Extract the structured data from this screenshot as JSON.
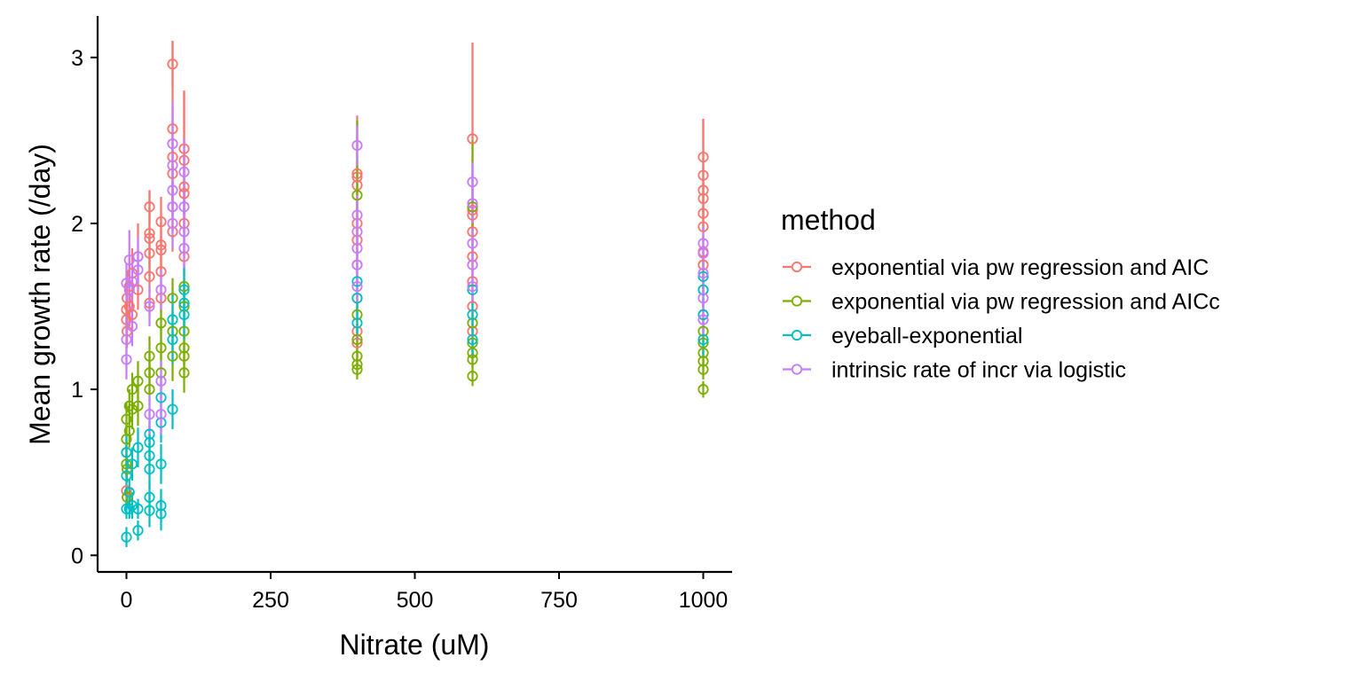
{
  "chart_data": {
    "type": "scatter",
    "title": "",
    "xlabel": "Nitrate (uM)",
    "ylabel": "Mean growth rate (/day)",
    "xlim": [
      -50,
      1050
    ],
    "ylim": [
      -0.1,
      3.25
    ],
    "x_ticks": [
      0,
      250,
      500,
      750,
      1000
    ],
    "x_tick_labels": [
      "0",
      "250",
      "500",
      "750",
      "1000"
    ],
    "y_ticks": [
      0,
      1,
      2,
      3
    ],
    "y_tick_labels": [
      "0",
      "1",
      "2",
      "3"
    ],
    "grid": false,
    "legend": {
      "title": "method",
      "position": "right"
    },
    "error_bars": true,
    "marker": "open-circle",
    "series": [
      {
        "name": "exponential via pw regression and AIC",
        "color": "#F8766D",
        "points": [
          {
            "x": 0,
            "y": 1.48,
            "err": 0.12
          },
          {
            "x": 0,
            "y": 1.42,
            "err": 0.1
          },
          {
            "x": 0,
            "y": 0.39,
            "err": 0.08
          },
          {
            "x": 1,
            "y": 1.55,
            "err": 0.15
          },
          {
            "x": 1,
            "y": 1.35,
            "err": 0.1
          },
          {
            "x": 5,
            "y": 1.62,
            "err": 0.18
          },
          {
            "x": 5,
            "y": 1.5,
            "err": 0.12
          },
          {
            "x": 10,
            "y": 1.7,
            "err": 0.15
          },
          {
            "x": 10,
            "y": 1.45,
            "err": 0.1
          },
          {
            "x": 20,
            "y": 1.8,
            "err": 0.2
          },
          {
            "x": 20,
            "y": 1.6,
            "err": 0.12
          },
          {
            "x": 40,
            "y": 2.1,
            "err": 0.1
          },
          {
            "x": 40,
            "y": 1.94,
            "err": 0.26
          },
          {
            "x": 40,
            "y": 1.91,
            "err": 0.15
          },
          {
            "x": 40,
            "y": 1.82,
            "err": 0.12
          },
          {
            "x": 40,
            "y": 1.68,
            "err": 0.1
          },
          {
            "x": 40,
            "y": 1.52,
            "err": 0.08
          },
          {
            "x": 60,
            "y": 2.01,
            "err": 0.15
          },
          {
            "x": 60,
            "y": 1.87,
            "err": 0.2
          },
          {
            "x": 60,
            "y": 1.84,
            "err": 0.12
          },
          {
            "x": 60,
            "y": 1.71,
            "err": 0.12
          },
          {
            "x": 60,
            "y": 1.55,
            "err": 0.1
          },
          {
            "x": 80,
            "y": 2.96,
            "err": 0.14
          },
          {
            "x": 80,
            "y": 2.57,
            "err": 0.53
          },
          {
            "x": 80,
            "y": 2.4,
            "err": 0.3
          },
          {
            "x": 80,
            "y": 2.3,
            "err": 0.2
          },
          {
            "x": 80,
            "y": 2.1,
            "err": 0.15
          },
          {
            "x": 80,
            "y": 1.95,
            "err": 0.12
          },
          {
            "x": 100,
            "y": 2.45,
            "err": 0.35
          },
          {
            "x": 100,
            "y": 2.38,
            "err": 0.42
          },
          {
            "x": 100,
            "y": 2.22,
            "err": 0.2
          },
          {
            "x": 100,
            "y": 2.18,
            "err": 0.15
          },
          {
            "x": 100,
            "y": 2.0,
            "err": 0.15
          },
          {
            "x": 100,
            "y": 1.8,
            "err": 0.12
          },
          {
            "x": 400,
            "y": 2.3,
            "err": 0.3
          },
          {
            "x": 400,
            "y": 2.28,
            "err": 0.37
          },
          {
            "x": 400,
            "y": 2.23,
            "err": 0.15
          },
          {
            "x": 400,
            "y": 2.0,
            "err": 0.12
          },
          {
            "x": 400,
            "y": 1.9,
            "err": 0.1
          },
          {
            "x": 400,
            "y": 1.75,
            "err": 0.1
          },
          {
            "x": 400,
            "y": 1.55,
            "err": 0.1
          },
          {
            "x": 400,
            "y": 1.35,
            "err": 0.1
          },
          {
            "x": 400,
            "y": 1.28,
            "err": 0.1
          },
          {
            "x": 600,
            "y": 2.51,
            "err": 0.58
          },
          {
            "x": 600,
            "y": 2.08,
            "err": 0.3
          },
          {
            "x": 600,
            "y": 2.05,
            "err": 0.15
          },
          {
            "x": 600,
            "y": 1.95,
            "err": 0.12
          },
          {
            "x": 600,
            "y": 1.8,
            "err": 0.1
          },
          {
            "x": 600,
            "y": 1.65,
            "err": 0.1
          },
          {
            "x": 600,
            "y": 1.5,
            "err": 0.1
          },
          {
            "x": 600,
            "y": 1.35,
            "err": 0.1
          },
          {
            "x": 1000,
            "y": 2.4,
            "err": 0.23
          },
          {
            "x": 1000,
            "y": 2.29,
            "err": 0.34
          },
          {
            "x": 1000,
            "y": 2.2,
            "err": 0.15
          },
          {
            "x": 1000,
            "y": 2.15,
            "err": 0.12
          },
          {
            "x": 1000,
            "y": 2.06,
            "err": 0.1
          },
          {
            "x": 1000,
            "y": 1.98,
            "err": 0.1
          },
          {
            "x": 1000,
            "y": 1.83,
            "err": 0.1
          },
          {
            "x": 1000,
            "y": 1.75,
            "err": 0.1
          },
          {
            "x": 1000,
            "y": 1.6,
            "err": 0.1
          },
          {
            "x": 1000,
            "y": 1.45,
            "err": 0.1
          }
        ]
      },
      {
        "name": "exponential via pw regression and AICc",
        "color": "#7CAE00",
        "points": [
          {
            "x": 0,
            "y": 0.55,
            "err": 0.08
          },
          {
            "x": 0,
            "y": 0.62,
            "err": 0.08
          },
          {
            "x": 0,
            "y": 0.7,
            "err": 0.1
          },
          {
            "x": 0,
            "y": 0.82,
            "err": 0.1
          },
          {
            "x": 1,
            "y": 0.35,
            "err": 0.06
          },
          {
            "x": 1,
            "y": 0.52,
            "err": 0.08
          },
          {
            "x": 5,
            "y": 0.75,
            "err": 0.1
          },
          {
            "x": 5,
            "y": 0.9,
            "err": 0.1
          },
          {
            "x": 10,
            "y": 0.88,
            "err": 0.12
          },
          {
            "x": 10,
            "y": 1.0,
            "err": 0.1
          },
          {
            "x": 20,
            "y": 0.9,
            "err": 0.12
          },
          {
            "x": 20,
            "y": 1.05,
            "err": 0.12
          },
          {
            "x": 40,
            "y": 1.0,
            "err": 0.15
          },
          {
            "x": 40,
            "y": 1.1,
            "err": 0.12
          },
          {
            "x": 40,
            "y": 1.2,
            "err": 0.12
          },
          {
            "x": 60,
            "y": 1.1,
            "err": 0.15
          },
          {
            "x": 60,
            "y": 1.25,
            "err": 0.12
          },
          {
            "x": 60,
            "y": 1.4,
            "err": 0.12
          },
          {
            "x": 80,
            "y": 1.2,
            "err": 0.15
          },
          {
            "x": 80,
            "y": 1.35,
            "err": 0.12
          },
          {
            "x": 80,
            "y": 1.55,
            "err": 0.12
          },
          {
            "x": 100,
            "y": 1.1,
            "err": 0.12
          },
          {
            "x": 100,
            "y": 1.2,
            "err": 0.1
          },
          {
            "x": 100,
            "y": 1.25,
            "err": 0.1
          },
          {
            "x": 100,
            "y": 1.35,
            "err": 0.12
          },
          {
            "x": 100,
            "y": 1.5,
            "err": 0.12
          },
          {
            "x": 100,
            "y": 1.62,
            "err": 0.12
          },
          {
            "x": 400,
            "y": 2.17,
            "err": 0.45
          },
          {
            "x": 400,
            "y": 1.12,
            "err": 0.06
          },
          {
            "x": 400,
            "y": 1.15,
            "err": 0.06
          },
          {
            "x": 400,
            "y": 1.2,
            "err": 0.08
          },
          {
            "x": 400,
            "y": 1.3,
            "err": 0.1
          },
          {
            "x": 400,
            "y": 1.45,
            "err": 0.1
          },
          {
            "x": 600,
            "y": 2.1,
            "err": 0.4
          },
          {
            "x": 600,
            "y": 1.08,
            "err": 0.06
          },
          {
            "x": 600,
            "y": 1.18,
            "err": 0.06
          },
          {
            "x": 600,
            "y": 1.22,
            "err": 0.08
          },
          {
            "x": 600,
            "y": 1.28,
            "err": 0.08
          },
          {
            "x": 600,
            "y": 1.4,
            "err": 0.08
          },
          {
            "x": 1000,
            "y": 1.0,
            "err": 0.05
          },
          {
            "x": 1000,
            "y": 1.12,
            "err": 0.06
          },
          {
            "x": 1000,
            "y": 1.17,
            "err": 0.06
          },
          {
            "x": 1000,
            "y": 1.22,
            "err": 0.06
          },
          {
            "x": 1000,
            "y": 1.28,
            "err": 0.06
          },
          {
            "x": 1000,
            "y": 1.35,
            "err": 0.08
          }
        ]
      },
      {
        "name": "eyeball-exponential",
        "color": "#00BFC4",
        "points": [
          {
            "x": 0,
            "y": 0.11,
            "err": 0.06
          },
          {
            "x": 0,
            "y": 0.28,
            "err": 0.06
          },
          {
            "x": 0,
            "y": 0.48,
            "err": 0.08
          },
          {
            "x": 0,
            "y": 0.62,
            "err": 0.1
          },
          {
            "x": 5,
            "y": 0.28,
            "err": 0.06
          },
          {
            "x": 5,
            "y": 0.38,
            "err": 0.08
          },
          {
            "x": 10,
            "y": 0.3,
            "err": 0.08
          },
          {
            "x": 10,
            "y": 0.55,
            "err": 0.1
          },
          {
            "x": 20,
            "y": 0.15,
            "err": 0.06
          },
          {
            "x": 20,
            "y": 0.28,
            "err": 0.06
          },
          {
            "x": 20,
            "y": 0.65,
            "err": 0.12
          },
          {
            "x": 40,
            "y": 0.27,
            "err": 0.1
          },
          {
            "x": 40,
            "y": 0.35,
            "err": 0.1
          },
          {
            "x": 40,
            "y": 0.52,
            "err": 0.12
          },
          {
            "x": 40,
            "y": 0.6,
            "err": 0.12
          },
          {
            "x": 40,
            "y": 0.68,
            "err": 0.12
          },
          {
            "x": 40,
            "y": 0.73,
            "err": 0.12
          },
          {
            "x": 60,
            "y": 0.25,
            "err": 0.1
          },
          {
            "x": 60,
            "y": 0.3,
            "err": 0.1
          },
          {
            "x": 60,
            "y": 0.55,
            "err": 0.12
          },
          {
            "x": 60,
            "y": 0.8,
            "err": 0.12
          },
          {
            "x": 60,
            "y": 0.95,
            "err": 0.12
          },
          {
            "x": 80,
            "y": 0.88,
            "err": 0.12
          },
          {
            "x": 80,
            "y": 1.3,
            "err": 0.15
          },
          {
            "x": 80,
            "y": 1.42,
            "err": 0.15
          },
          {
            "x": 100,
            "y": 1.45,
            "err": 0.15
          },
          {
            "x": 100,
            "y": 1.52,
            "err": 0.15
          },
          {
            "x": 100,
            "y": 1.6,
            "err": 0.15
          },
          {
            "x": 400,
            "y": 1.4,
            "err": 0.1
          },
          {
            "x": 400,
            "y": 1.55,
            "err": 0.1
          },
          {
            "x": 400,
            "y": 1.65,
            "err": 0.1
          },
          {
            "x": 600,
            "y": 1.3,
            "err": 0.1
          },
          {
            "x": 600,
            "y": 1.45,
            "err": 0.1
          },
          {
            "x": 600,
            "y": 1.6,
            "err": 0.1
          },
          {
            "x": 1000,
            "y": 1.3,
            "err": 0.1
          },
          {
            "x": 1000,
            "y": 1.45,
            "err": 0.1
          },
          {
            "x": 1000,
            "y": 1.6,
            "err": 0.1
          },
          {
            "x": 1000,
            "y": 1.68,
            "err": 0.1
          }
        ]
      },
      {
        "name": "intrinsic rate of incr via logistic",
        "color": "#C77CFF",
        "points": [
          {
            "x": 0,
            "y": 1.64,
            "err": 0.12
          },
          {
            "x": 0,
            "y": 1.3,
            "err": 0.15
          },
          {
            "x": 0,
            "y": 1.18,
            "err": 0.12
          },
          {
            "x": 5,
            "y": 1.78,
            "err": 0.18
          },
          {
            "x": 5,
            "y": 1.6,
            "err": 0.12
          },
          {
            "x": 10,
            "y": 1.65,
            "err": 0.12
          },
          {
            "x": 10,
            "y": 1.38,
            "err": 0.12
          },
          {
            "x": 20,
            "y": 1.8,
            "err": 0.12
          },
          {
            "x": 20,
            "y": 1.72,
            "err": 0.12
          },
          {
            "x": 40,
            "y": 0.85,
            "err": 0.12
          },
          {
            "x": 40,
            "y": 1.5,
            "err": 0.12
          },
          {
            "x": 60,
            "y": 0.85,
            "err": 0.12
          },
          {
            "x": 60,
            "y": 1.05,
            "err": 0.12
          },
          {
            "x": 60,
            "y": 1.6,
            "err": 0.12
          },
          {
            "x": 80,
            "y": 2.48,
            "err": 0.25
          },
          {
            "x": 80,
            "y": 2.35,
            "err": 0.2
          },
          {
            "x": 80,
            "y": 2.2,
            "err": 0.15
          },
          {
            "x": 80,
            "y": 2.1,
            "err": 0.15
          },
          {
            "x": 80,
            "y": 2.0,
            "err": 0.15
          },
          {
            "x": 100,
            "y": 2.31,
            "err": 0.2
          },
          {
            "x": 100,
            "y": 2.1,
            "err": 0.15
          },
          {
            "x": 100,
            "y": 1.95,
            "err": 0.15
          },
          {
            "x": 100,
            "y": 1.85,
            "err": 0.12
          },
          {
            "x": 400,
            "y": 2.47,
            "err": 0.12
          },
          {
            "x": 400,
            "y": 2.05,
            "err": 0.12
          },
          {
            "x": 400,
            "y": 1.95,
            "err": 0.1
          },
          {
            "x": 400,
            "y": 1.85,
            "err": 0.1
          },
          {
            "x": 400,
            "y": 1.75,
            "err": 0.1
          },
          {
            "x": 400,
            "y": 1.62,
            "err": 0.1
          },
          {
            "x": 600,
            "y": 2.25,
            "err": 0.12
          },
          {
            "x": 600,
            "y": 2.12,
            "err": 0.12
          },
          {
            "x": 600,
            "y": 1.88,
            "err": 0.1
          },
          {
            "x": 600,
            "y": 1.75,
            "err": 0.1
          },
          {
            "x": 600,
            "y": 1.62,
            "err": 0.1
          },
          {
            "x": 1000,
            "y": 1.88,
            "err": 0.1
          },
          {
            "x": 1000,
            "y": 1.82,
            "err": 0.1
          },
          {
            "x": 1000,
            "y": 1.7,
            "err": 0.1
          },
          {
            "x": 1000,
            "y": 1.55,
            "err": 0.1
          },
          {
            "x": 1000,
            "y": 1.42,
            "err": 0.1
          }
        ]
      }
    ]
  }
}
